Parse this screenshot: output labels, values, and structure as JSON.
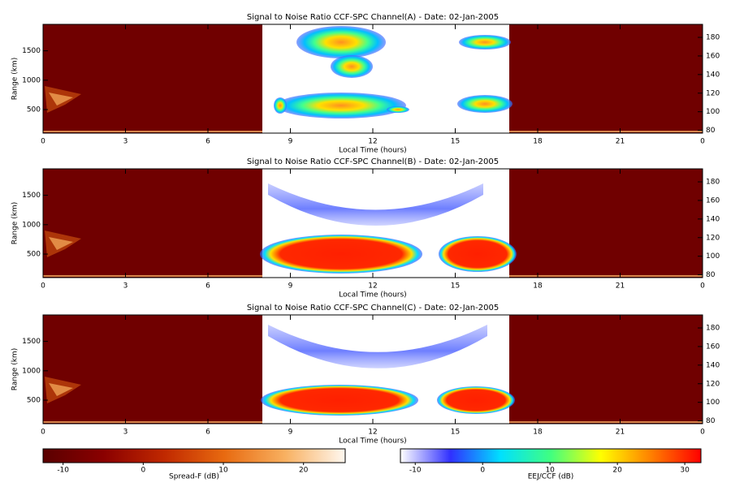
{
  "panels": [
    {
      "title": "Signal to Noise Ratio CCF-SPC Channel(A) - Date: 02-Jan-2005",
      "xlabel": "Local Time (hours)",
      "ylabel": "Range (km)",
      "xlim": [
        0,
        24
      ],
      "xticks": [
        0,
        3,
        6,
        9,
        12,
        15,
        18,
        21,
        {
          "value": 24,
          "label": "0"
        }
      ],
      "ylim": [
        100,
        1950
      ],
      "yticks": [
        500,
        1000,
        1500
      ],
      "y2lim": [
        77,
        194
      ],
      "y2ticks": [
        80,
        100,
        120,
        140,
        160,
        180
      ]
    },
    {
      "title": "Signal to Noise Ratio CCF-SPC Channel(B) - Date: 02-Jan-2005",
      "xlabel": "Local Time (hours)",
      "ylabel": "Range (km)",
      "xlim": [
        0,
        24
      ],
      "xticks": [
        0,
        3,
        6,
        9,
        12,
        15,
        18,
        21,
        {
          "value": 24,
          "label": "0"
        }
      ],
      "ylim": [
        100,
        1950
      ],
      "yticks": [
        500,
        1000,
        1500
      ],
      "y2lim": [
        77,
        194
      ],
      "y2ticks": [
        80,
        100,
        120,
        140,
        160,
        180
      ]
    },
    {
      "title": "Signal to Noise Ratio CCF-SPC Channel(C) - Date: 02-Jan-2005",
      "xlabel": "Local Time (hours)",
      "ylabel": "Range (km)",
      "xlim": [
        0,
        24
      ],
      "xticks": [
        0,
        3,
        6,
        9,
        12,
        15,
        18,
        21,
        {
          "value": 24,
          "label": "0"
        }
      ],
      "ylim": [
        100,
        1950
      ],
      "yticks": [
        500,
        1000,
        1500
      ],
      "y2lim": [
        77,
        194
      ],
      "y2ticks": [
        80,
        100,
        120,
        140,
        160,
        180
      ]
    }
  ],
  "colorbars": [
    {
      "label": "Spread-F (dB)",
      "lim": [
        -12.5,
        25.2
      ],
      "ticks": [
        -10,
        0,
        10,
        20
      ],
      "colors": [
        "#5a0000",
        "#8a0000",
        "#c02800",
        "#e86a10",
        "#f8b060",
        "#fff8f0"
      ]
    },
    {
      "label": "EEJ/CCF (dB)",
      "lim": [
        -12.2,
        32.4
      ],
      "ticks": [
        -10,
        0,
        10,
        20,
        30
      ],
      "colors": [
        "#ffffff",
        "#3030ff",
        "#00e0ff",
        "#40ff80",
        "#ffff00",
        "#ff8000",
        "#ff0000"
      ]
    }
  ]
}
